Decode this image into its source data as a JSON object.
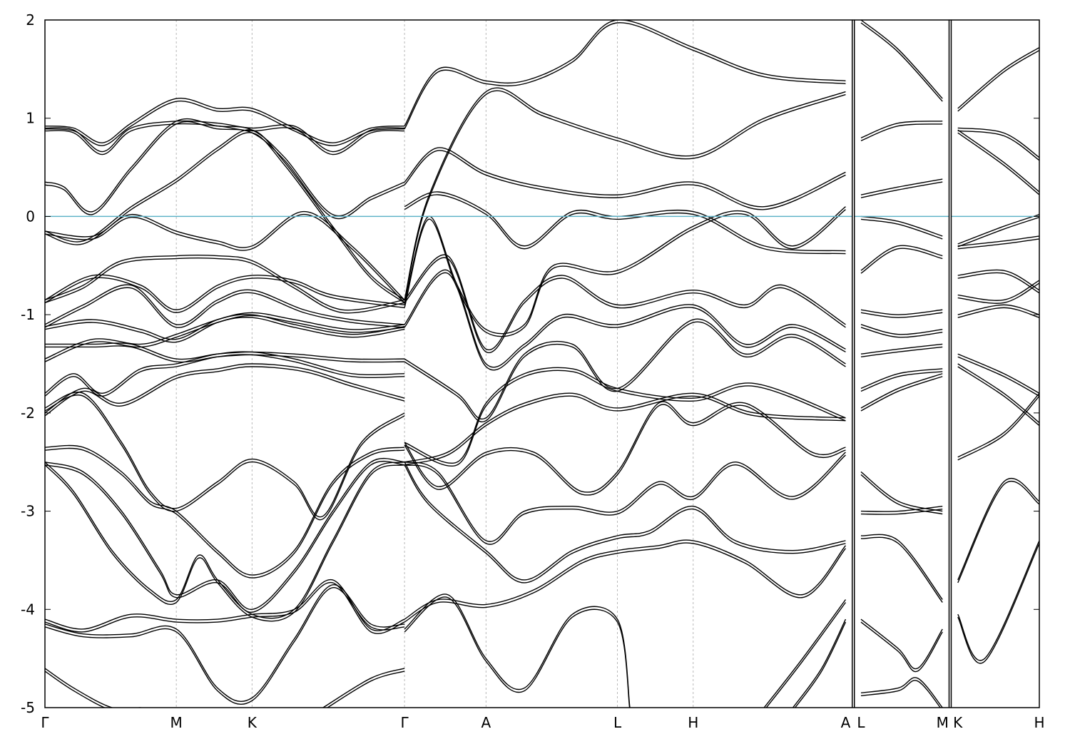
{
  "chart_data": {
    "type": "line",
    "title": "",
    "xlabel": "",
    "ylabel": "",
    "ylim": [
      -5,
      2
    ],
    "y_ticks": [
      "2",
      "1",
      "0",
      "-1",
      "-2",
      "-3",
      "-4",
      "-5"
    ],
    "fermi_level": 0,
    "fermi_color": "#5fb3c8",
    "band_color": "#000000",
    "grid": "dashed vertical lines at high-symmetry points",
    "x_ticks": [
      {
        "label": "Γ",
        "pos": 0.0
      },
      {
        "label": "M",
        "pos": 1.37
      },
      {
        "label": "K",
        "pos": 2.16
      },
      {
        "label": "Γ",
        "pos": 3.75
      },
      {
        "label": "A",
        "pos": 4.6
      },
      {
        "label": "L",
        "pos": 5.97
      },
      {
        "label": "H",
        "pos": 6.76
      },
      {
        "label": "A",
        "pos": 8.35
      },
      {
        "label": "L",
        "pos": 8.51
      },
      {
        "label": "M",
        "pos": 9.36
      },
      {
        "label": "K",
        "pos": 9.52
      },
      {
        "label": "H",
        "pos": 10.37
      }
    ],
    "x_range": [
      0,
      10.37
    ],
    "discontinuities": [
      8.43,
      9.44
    ],
    "series": [
      {
        "x": [
          0,
          0.3,
          0.6,
          0.9,
          1.37,
          1.8,
          2.16,
          2.6,
          3.0,
          3.4,
          3.75
        ],
        "y": [
          0.92,
          0.9,
          0.75,
          0.95,
          1.2,
          1.1,
          1.1,
          0.9,
          0.75,
          0.9,
          0.92
        ]
      },
      {
        "x": [
          0,
          0.3,
          0.6,
          0.9,
          1.37,
          1.8,
          2.16,
          2.6,
          3.0,
          3.4,
          3.75
        ],
        "y": [
          0.9,
          0.88,
          0.66,
          0.9,
          0.97,
          0.95,
          0.9,
          0.92,
          0.66,
          0.88,
          0.9
        ]
      },
      {
        "x": [
          0,
          0.2,
          0.5,
          0.9,
          1.37,
          1.8,
          2.16,
          2.5,
          3.0,
          3.4,
          3.75
        ],
        "y": [
          0.35,
          0.3,
          0.05,
          0.5,
          0.97,
          0.92,
          0.88,
          0.6,
          0.02,
          0.2,
          0.35
        ]
      },
      {
        "x": [
          0,
          0.4,
          0.9,
          1.37,
          1.8,
          2.16,
          2.5,
          3.0,
          3.4,
          3.75
        ],
        "y": [
          -0.15,
          -0.25,
          0.1,
          0.38,
          0.7,
          0.88,
          0.55,
          -0.1,
          -0.6,
          -0.85
        ]
      },
      {
        "x": [
          0,
          0.5,
          0.9,
          1.37,
          1.8,
          2.16,
          2.7,
          3.2,
          3.75
        ],
        "y": [
          -0.15,
          -0.2,
          0.02,
          -0.15,
          -0.25,
          -0.3,
          0.05,
          -0.3,
          -0.85
        ]
      },
      {
        "x": [
          0,
          0.4,
          0.8,
          1.37,
          1.8,
          2.16,
          2.6,
          3.1,
          3.75
        ],
        "y": [
          -0.85,
          -0.7,
          -0.45,
          -0.4,
          -0.4,
          -0.45,
          -0.7,
          -0.95,
          -0.85
        ]
      },
      {
        "x": [
          0,
          0.5,
          1.0,
          1.37,
          1.8,
          2.16,
          2.6,
          3.0,
          3.75
        ],
        "y": [
          -0.85,
          -0.6,
          -0.7,
          -0.95,
          -0.7,
          -0.6,
          -0.65,
          -0.8,
          -0.9
        ]
      },
      {
        "x": [
          0,
          0.4,
          0.9,
          1.37,
          1.8,
          2.16,
          2.7,
          3.2,
          3.75
        ],
        "y": [
          -1.1,
          -0.9,
          -0.7,
          -1.1,
          -0.85,
          -0.75,
          -0.95,
          -1.05,
          -1.1
        ]
      },
      {
        "x": [
          0,
          0.5,
          1.0,
          1.37,
          1.8,
          2.16,
          2.6,
          3.2,
          3.75
        ],
        "y": [
          -1.12,
          -1.05,
          -1.15,
          -1.25,
          -1.05,
          -1.0,
          -1.1,
          -1.2,
          -1.12
        ]
      },
      {
        "x": [
          0,
          0.5,
          1.0,
          1.37,
          1.8,
          2.16,
          2.6,
          3.2,
          3.75
        ],
        "y": [
          -1.45,
          -1.25,
          -1.3,
          -1.2,
          -1.05,
          -0.98,
          -1.05,
          -1.15,
          -1.1
        ]
      },
      {
        "x": [
          0,
          0.5,
          0.9,
          1.37,
          1.8,
          2.16,
          2.6,
          3.2,
          3.75
        ],
        "y": [
          -1.3,
          -1.3,
          -1.3,
          -1.45,
          -1.4,
          -1.38,
          -1.4,
          -1.45,
          -1.45
        ]
      },
      {
        "x": [
          0,
          0.3,
          0.6,
          1.0,
          1.37,
          1.8,
          2.16,
          2.6,
          3.2,
          3.75
        ],
        "y": [
          -1.8,
          -1.6,
          -1.8,
          -1.55,
          -1.5,
          -1.4,
          -1.38,
          -1.45,
          -1.6,
          -1.6
        ]
      },
      {
        "x": [
          0,
          0.4,
          0.8,
          1.37,
          1.8,
          2.16,
          2.7,
          3.2,
          3.75
        ],
        "y": [
          -2.0,
          -1.75,
          -1.9,
          -1.62,
          -1.55,
          -1.5,
          -1.55,
          -1.7,
          -1.85
        ]
      },
      {
        "x": [
          0,
          0.4,
          0.8,
          1.1,
          1.37,
          1.8,
          2.16,
          2.6,
          2.9,
          3.3,
          3.75
        ],
        "y": [
          -1.95,
          -1.8,
          -2.3,
          -2.8,
          -2.97,
          -2.7,
          -2.47,
          -2.7,
          -3.05,
          -2.3,
          -2.0
        ]
      },
      {
        "x": [
          0,
          0.4,
          0.8,
          1.1,
          1.37,
          1.8,
          2.16,
          2.6,
          3.0,
          3.4,
          3.75
        ],
        "y": [
          -2.35,
          -2.35,
          -2.6,
          -2.9,
          -3.0,
          -3.4,
          -3.65,
          -3.4,
          -2.7,
          -2.4,
          -2.35
        ]
      },
      {
        "x": [
          0,
          0.4,
          0.8,
          1.2,
          1.37,
          1.8,
          2.16,
          2.6,
          3.0,
          3.4,
          3.75
        ],
        "y": [
          -2.5,
          -2.6,
          -3.0,
          -3.6,
          -3.85,
          -3.7,
          -4.0,
          -3.6,
          -3.0,
          -2.5,
          -2.5
        ]
      },
      {
        "x": [
          0,
          0.3,
          0.7,
          1.1,
          1.37,
          1.6,
          1.8,
          2.16,
          2.6,
          3.0,
          3.4,
          3.75
        ],
        "y": [
          -2.5,
          -2.8,
          -3.4,
          -3.8,
          -3.9,
          -3.45,
          -3.7,
          -4.05,
          -4.0,
          -3.3,
          -2.6,
          -2.5
        ]
      },
      {
        "x": [
          0,
          0.4,
          0.9,
          1.37,
          1.8,
          2.16,
          2.6,
          3.0,
          3.4,
          3.75
        ],
        "y": [
          -4.1,
          -4.2,
          -4.05,
          -4.1,
          -4.1,
          -4.05,
          -4.0,
          -3.7,
          -4.2,
          -4.1
        ]
      },
      {
        "x": [
          0,
          0.4,
          0.9,
          1.37,
          1.8,
          2.16,
          2.6,
          3.0,
          3.4,
          3.75
        ],
        "y": [
          -4.15,
          -4.25,
          -4.25,
          -4.2,
          -4.8,
          -4.9,
          -4.3,
          -3.75,
          -4.15,
          -4.15
        ]
      },
      {
        "x": [
          0,
          0.3,
          0.7,
          1.0
        ],
        "y": [
          -4.6,
          -4.8,
          -5.0,
          -5.0
        ]
      },
      {
        "x": [
          2.9,
          3.4,
          3.75
        ],
        "y": [
          -5.0,
          -4.7,
          -4.6
        ]
      },
      {
        "x": [
          3.75,
          4.1,
          4.6,
          5.0,
          5.5,
          5.97,
          6.76,
          7.5,
          8.35
        ],
        "y": [
          0.92,
          1.5,
          1.38,
          1.38,
          1.6,
          2.0,
          1.72,
          1.45,
          1.38
        ]
      },
      {
        "x": [
          3.75,
          4.0,
          4.6,
          5.2,
          5.97,
          6.76,
          7.5,
          8.35
        ],
        "y": [
          -0.85,
          0.2,
          1.27,
          1.05,
          0.8,
          0.62,
          1.0,
          1.27
        ]
      },
      {
        "x": [
          3.75,
          4.1,
          4.6,
          5.2,
          5.97,
          6.76,
          7.5,
          8.35
        ],
        "y": [
          0.35,
          0.7,
          0.45,
          0.3,
          0.22,
          0.35,
          0.1,
          0.45
        ]
      },
      {
        "x": [
          3.75,
          4.1,
          4.6,
          5.0,
          5.5,
          5.97,
          6.76,
          7.5,
          8.35
        ],
        "y": [
          0.1,
          0.25,
          0.05,
          -0.3,
          0.05,
          0.0,
          0.05,
          -0.3,
          -0.35
        ]
      },
      {
        "x": [
          3.75,
          4.0,
          4.3,
          4.6,
          5.0,
          5.3,
          5.97,
          6.76,
          7.3,
          7.8,
          8.35
        ],
        "y": [
          -0.9,
          0.0,
          -0.7,
          -1.15,
          -1.1,
          -0.5,
          -0.55,
          -0.1,
          0.05,
          -0.3,
          0.1
        ]
      },
      {
        "x": [
          3.75,
          4.2,
          4.6,
          5.0,
          5.4,
          5.97,
          6.76,
          7.3,
          7.7,
          8.35
        ],
        "y": [
          -0.85,
          -0.4,
          -1.35,
          -0.85,
          -0.6,
          -0.9,
          -0.75,
          -0.9,
          -0.7,
          -1.1
        ]
      },
      {
        "x": [
          3.75,
          4.2,
          4.6,
          5.0,
          5.4,
          5.97,
          6.76,
          7.3,
          7.8,
          8.35
        ],
        "y": [
          -1.1,
          -0.55,
          -1.5,
          -1.3,
          -1.0,
          -1.1,
          -0.9,
          -1.3,
          -1.1,
          -1.35
        ]
      },
      {
        "x": [
          3.75,
          4.3,
          4.6,
          5.0,
          5.5,
          5.97,
          6.76,
          7.3,
          7.8,
          8.35
        ],
        "y": [
          -1.45,
          -1.8,
          -2.05,
          -1.4,
          -1.3,
          -1.75,
          -1.05,
          -1.4,
          -1.2,
          -1.5
        ]
      },
      {
        "x": [
          3.75,
          4.3,
          4.6,
          5.0,
          5.5,
          5.97,
          6.76,
          7.4,
          8.35
        ],
        "y": [
          -2.3,
          -2.5,
          -1.9,
          -1.6,
          -1.55,
          -1.75,
          -1.85,
          -1.7,
          -2.05
        ]
      },
      {
        "x": [
          3.75,
          4.2,
          4.6,
          5.0,
          5.5,
          5.97,
          6.76,
          7.4,
          8.35
        ],
        "y": [
          -2.5,
          -2.4,
          -2.1,
          -1.9,
          -1.8,
          -1.95,
          -1.8,
          -2.0,
          -2.05
        ]
      },
      {
        "x": [
          3.75,
          4.1,
          4.6,
          5.1,
          5.6,
          5.97,
          6.4,
          6.76,
          7.3,
          8.0,
          8.35
        ],
        "y": [
          -2.3,
          -2.75,
          -2.4,
          -2.4,
          -2.8,
          -2.6,
          -1.9,
          -2.1,
          -1.9,
          -2.4,
          -2.35
        ]
      },
      {
        "x": [
          3.75,
          4.1,
          4.6,
          5.0,
          5.5,
          5.97,
          6.4,
          6.76,
          7.2,
          7.8,
          8.35
        ],
        "y": [
          -2.5,
          -2.6,
          -3.3,
          -3.0,
          -2.95,
          -3.0,
          -2.7,
          -2.85,
          -2.5,
          -2.85,
          -2.4
        ]
      },
      {
        "x": [
          3.75,
          4.0,
          4.6,
          5.0,
          5.5,
          5.97,
          6.3,
          6.76,
          7.2,
          7.8,
          8.35
        ],
        "y": [
          -2.5,
          -2.9,
          -3.4,
          -3.7,
          -3.4,
          -3.25,
          -3.2,
          -2.95,
          -3.3,
          -3.4,
          -3.3
        ]
      },
      {
        "x": [
          3.75,
          4.1,
          4.6,
          5.1,
          5.6,
          5.97,
          6.4,
          6.76,
          7.3,
          7.9,
          8.35
        ],
        "y": [
          -4.1,
          -3.9,
          -3.95,
          -3.8,
          -3.5,
          -3.4,
          -3.35,
          -3.3,
          -3.5,
          -3.85,
          -3.35
        ]
      },
      {
        "x": [
          3.75,
          4.2,
          4.6,
          5.0,
          5.5,
          5.97,
          6.1
        ],
        "y": [
          -4.2,
          -3.85,
          -4.5,
          -4.8,
          -4.05,
          -4.1,
          -5.0
        ]
      },
      {
        "x": [
          7.5,
          7.9,
          8.35
        ],
        "y": [
          -5.0,
          -4.5,
          -3.9
        ]
      },
      {
        "x": [
          7.8,
          8.1,
          8.35
        ],
        "y": [
          -5.0,
          -4.6,
          -4.1
        ]
      },
      {
        "x": [
          8.51,
          8.9,
          9.36
        ],
        "y": [
          2.0,
          1.7,
          1.2
        ]
      },
      {
        "x": [
          8.51,
          8.9,
          9.36
        ],
        "y": [
          0.8,
          0.95,
          0.97
        ]
      },
      {
        "x": [
          8.51,
          8.9,
          9.36
        ],
        "y": [
          0.22,
          0.3,
          0.38
        ]
      },
      {
        "x": [
          8.51,
          8.9,
          9.36
        ],
        "y": [
          0.0,
          -0.05,
          -0.2
        ]
      },
      {
        "x": [
          8.51,
          8.9,
          9.36
        ],
        "y": [
          -0.55,
          -0.3,
          -0.4
        ]
      },
      {
        "x": [
          8.51,
          8.9,
          9.36
        ],
        "y": [
          -0.95,
          -1.0,
          -0.95
        ]
      },
      {
        "x": [
          8.51,
          8.9,
          9.36
        ],
        "y": [
          -1.1,
          -1.2,
          -1.15
        ]
      },
      {
        "x": [
          8.51,
          8.9,
          9.36
        ],
        "y": [
          -1.4,
          -1.35,
          -1.3
        ]
      },
      {
        "x": [
          8.51,
          8.9,
          9.36
        ],
        "y": [
          -1.75,
          -1.6,
          -1.55
        ]
      },
      {
        "x": [
          8.51,
          8.9,
          9.36
        ],
        "y": [
          -1.95,
          -1.75,
          -1.6
        ]
      },
      {
        "x": [
          8.51,
          8.9,
          9.36
        ],
        "y": [
          -2.6,
          -2.9,
          -3.0
        ]
      },
      {
        "x": [
          8.51,
          8.9,
          9.36
        ],
        "y": [
          -3.0,
          -3.0,
          -2.95
        ]
      },
      {
        "x": [
          8.51,
          8.9,
          9.36
        ],
        "y": [
          -3.25,
          -3.3,
          -3.9
        ]
      },
      {
        "x": [
          8.51,
          8.9,
          9.1,
          9.36
        ],
        "y": [
          -4.1,
          -4.4,
          -4.6,
          -4.2
        ]
      },
      {
        "x": [
          8.51,
          8.9,
          9.1,
          9.36
        ],
        "y": [
          -4.85,
          -4.8,
          -4.7,
          -5.0
        ]
      },
      {
        "x": [
          9.52,
          10.0,
          10.37
        ],
        "y": [
          1.1,
          1.5,
          1.72
        ]
      },
      {
        "x": [
          9.52,
          10.0,
          10.37
        ],
        "y": [
          0.9,
          0.85,
          0.6
        ]
      },
      {
        "x": [
          9.52,
          10.0,
          10.37
        ],
        "y": [
          0.88,
          0.55,
          0.25
        ]
      },
      {
        "x": [
          9.52,
          10.0,
          10.37
        ],
        "y": [
          -0.28,
          -0.1,
          0.02
        ]
      },
      {
        "x": [
          9.52,
          10.0,
          10.37
        ],
        "y": [
          -0.3,
          -0.25,
          -0.2
        ]
      },
      {
        "x": [
          9.52,
          10.0,
          10.37
        ],
        "y": [
          -0.6,
          -0.55,
          -0.75
        ]
      },
      {
        "x": [
          9.52,
          10.0,
          10.37
        ],
        "y": [
          -0.8,
          -0.85,
          -0.65
        ]
      },
      {
        "x": [
          9.52,
          10.0,
          10.37
        ],
        "y": [
          -1.0,
          -0.9,
          -1.0
        ]
      },
      {
        "x": [
          9.52,
          10.0,
          10.37
        ],
        "y": [
          -1.4,
          -1.6,
          -1.8
        ]
      },
      {
        "x": [
          9.52,
          10.0,
          10.37
        ],
        "y": [
          -1.5,
          -1.8,
          -2.1
        ]
      },
      {
        "x": [
          9.52,
          10.0,
          10.37
        ],
        "y": [
          -2.45,
          -2.2,
          -1.8
        ]
      },
      {
        "x": [
          9.52,
          10.0,
          10.37
        ],
        "y": [
          -3.7,
          -2.7,
          -2.9
        ]
      },
      {
        "x": [
          9.52,
          9.8,
          10.37
        ],
        "y": [
          -4.05,
          -4.5,
          -3.3
        ]
      }
    ]
  }
}
